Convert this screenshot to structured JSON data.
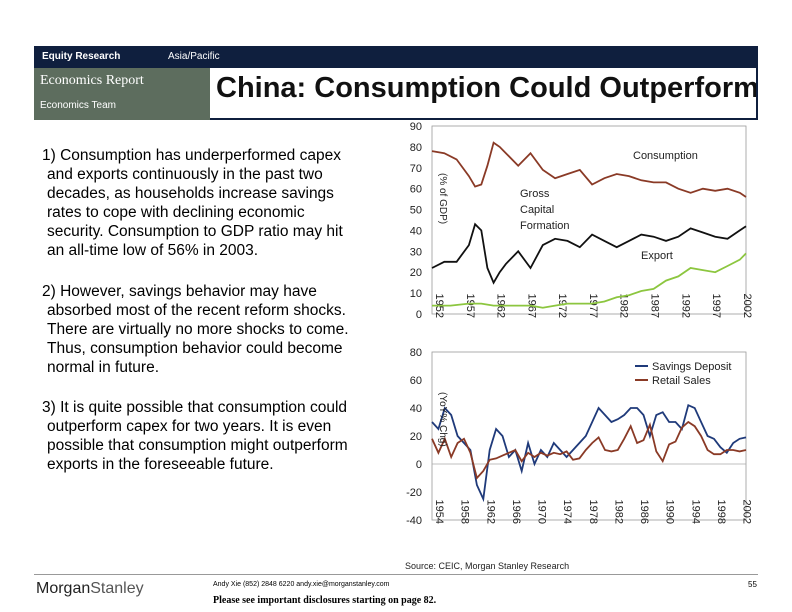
{
  "header": {
    "equity_research": "Equity Research",
    "region": "Asia/Pacific",
    "report_type": "Economics Report",
    "team": "Economics Team",
    "title": "China: Consumption Could Outperform"
  },
  "paragraphs": [
    [
      "1) Consumption has underperformed capex",
      "and exports continuously in the past two",
      "decades, as households increase savings",
      "rates to cope with declining economic",
      "security.  Consumption to GDP ratio may hit",
      "an all-time low of 56% in 2003."
    ],
    [
      "2) However, savings behavior may have",
      "absorbed most of the recent reform shocks.",
      "There are virtually no more shocks to come.",
      "Thus, consumption behavior could become",
      "normal in future."
    ],
    [
      "3) It is quite possible that consumption could",
      "outperform capex for two years.  It is even",
      "possible that consumption might outperform",
      "exports in the foreseeable future."
    ]
  ],
  "chart_data": [
    {
      "type": "line",
      "title": "",
      "ylabel": "(% of GDP)",
      "xlabel": "",
      "ylim": [
        0,
        90
      ],
      "yticks": [
        0,
        10,
        20,
        30,
        40,
        50,
        60,
        70,
        80,
        90
      ],
      "xlim": [
        1952,
        2003
      ],
      "xticks": [
        1952,
        1957,
        1962,
        1967,
        1972,
        1977,
        1982,
        1987,
        1992,
        1997,
        2002
      ],
      "labels": {
        "consumption": "Consumption",
        "gcf1": "Gross",
        "gcf2": "Capital",
        "gcf3": "Formation",
        "export": "Export"
      },
      "series": [
        {
          "name": "Consumption",
          "color": "#8a3a26",
          "x": [
            1952,
            1954,
            1956,
            1958,
            1959,
            1960,
            1961,
            1962,
            1963,
            1964,
            1966,
            1968,
            1970,
            1972,
            1974,
            1976,
            1978,
            1980,
            1982,
            1984,
            1986,
            1988,
            1990,
            1992,
            1994,
            1996,
            1998,
            2000,
            2002,
            2003
          ],
          "values": [
            78,
            77,
            74,
            66,
            61,
            62,
            71,
            82,
            80,
            77,
            71,
            77,
            69,
            65,
            67,
            69,
            62,
            65,
            67,
            66,
            64,
            63,
            63,
            60,
            58,
            60,
            59,
            60,
            58,
            56
          ]
        },
        {
          "name": "Gross Capital Formation",
          "color": "#111111",
          "x": [
            1952,
            1954,
            1956,
            1958,
            1959,
            1960,
            1961,
            1962,
            1963,
            1964,
            1966,
            1968,
            1970,
            1972,
            1974,
            1976,
            1978,
            1980,
            1982,
            1984,
            1986,
            1988,
            1990,
            1992,
            1994,
            1996,
            1998,
            2000,
            2002,
            2003
          ],
          "values": [
            22,
            25,
            25,
            33,
            43,
            40,
            22,
            15,
            20,
            24,
            30,
            22,
            33,
            36,
            35,
            32,
            38,
            35,
            32,
            35,
            38,
            37,
            35,
            37,
            41,
            39,
            37,
            36,
            40,
            42
          ]
        },
        {
          "name": "Export",
          "color": "#8cc63f",
          "x": [
            1952,
            1955,
            1958,
            1960,
            1962,
            1965,
            1968,
            1970,
            1972,
            1974,
            1976,
            1978,
            1980,
            1982,
            1984,
            1986,
            1988,
            1990,
            1992,
            1994,
            1996,
            1998,
            2000,
            2002,
            2003
          ],
          "values": [
            4,
            4,
            5,
            5,
            4,
            4,
            4,
            3,
            4,
            5,
            5,
            5,
            6,
            8,
            9,
            11,
            12,
            16,
            18,
            22,
            21,
            20,
            23,
            26,
            29
          ]
        }
      ]
    },
    {
      "type": "line",
      "title": "",
      "ylabel": "(YoY% Chg)",
      "xlabel": "",
      "ylim": [
        -40,
        80
      ],
      "yticks": [
        -40,
        -20,
        0,
        20,
        40,
        60,
        80
      ],
      "xlim": [
        1954,
        2003
      ],
      "xticks": [
        1954,
        1958,
        1962,
        1966,
        1970,
        1974,
        1978,
        1982,
        1986,
        1990,
        1994,
        1998,
        2002
      ],
      "legend": "top-right",
      "series": [
        {
          "name": "Savings Deposit",
          "color": "#1f3a7a",
          "x": [
            1954,
            1955,
            1956,
            1957,
            1958,
            1959,
            1960,
            1961,
            1962,
            1963,
            1964,
            1965,
            1966,
            1967,
            1968,
            1969,
            1970,
            1971,
            1972,
            1973,
            1974,
            1975,
            1976,
            1977,
            1978,
            1979,
            1980,
            1981,
            1982,
            1983,
            1984,
            1985,
            1986,
            1987,
            1988,
            1989,
            1990,
            1991,
            1992,
            1993,
            1994,
            1995,
            1996,
            1997,
            1998,
            1999,
            2000,
            2001,
            2002,
            2003
          ],
          "values": [
            30,
            25,
            40,
            35,
            20,
            15,
            10,
            -15,
            -25,
            10,
            25,
            20,
            5,
            10,
            -5,
            15,
            0,
            10,
            5,
            15,
            10,
            5,
            10,
            15,
            20,
            30,
            40,
            35,
            30,
            32,
            35,
            40,
            40,
            35,
            20,
            35,
            37,
            30,
            30,
            25,
            42,
            40,
            30,
            20,
            18,
            12,
            8,
            15,
            18,
            19
          ]
        },
        {
          "name": "Retail Sales",
          "color": "#8a3a26",
          "x": [
            1954,
            1955,
            1956,
            1957,
            1958,
            1959,
            1960,
            1961,
            1962,
            1963,
            1964,
            1965,
            1966,
            1967,
            1968,
            1969,
            1970,
            1971,
            1972,
            1973,
            1974,
            1975,
            1976,
            1977,
            1978,
            1979,
            1980,
            1981,
            1982,
            1983,
            1984,
            1985,
            1986,
            1987,
            1988,
            1989,
            1990,
            1991,
            1992,
            1993,
            1994,
            1995,
            1996,
            1997,
            1998,
            1999,
            2000,
            2001,
            2002,
            2003
          ],
          "values": [
            18,
            8,
            18,
            5,
            15,
            18,
            8,
            -10,
            -5,
            3,
            4,
            6,
            8,
            10,
            2,
            8,
            5,
            8,
            6,
            8,
            7,
            9,
            3,
            4,
            10,
            15,
            19,
            10,
            9,
            10,
            18,
            27,
            15,
            17,
            28,
            9,
            2,
            14,
            16,
            26,
            30,
            27,
            20,
            10,
            7,
            7,
            10,
            10,
            9,
            10
          ]
        }
      ]
    }
  ],
  "footer": {
    "source": "Source: CEIC, Morgan Stanley Research",
    "logo_morgan": "Morgan",
    "logo_stanley": "Stanley",
    "contact": "Andy Xie (852) 2848 6220  andy.xie@morganstanley.com",
    "disclosure": "Please see important disclosures starting on page 82.",
    "page": "55"
  }
}
